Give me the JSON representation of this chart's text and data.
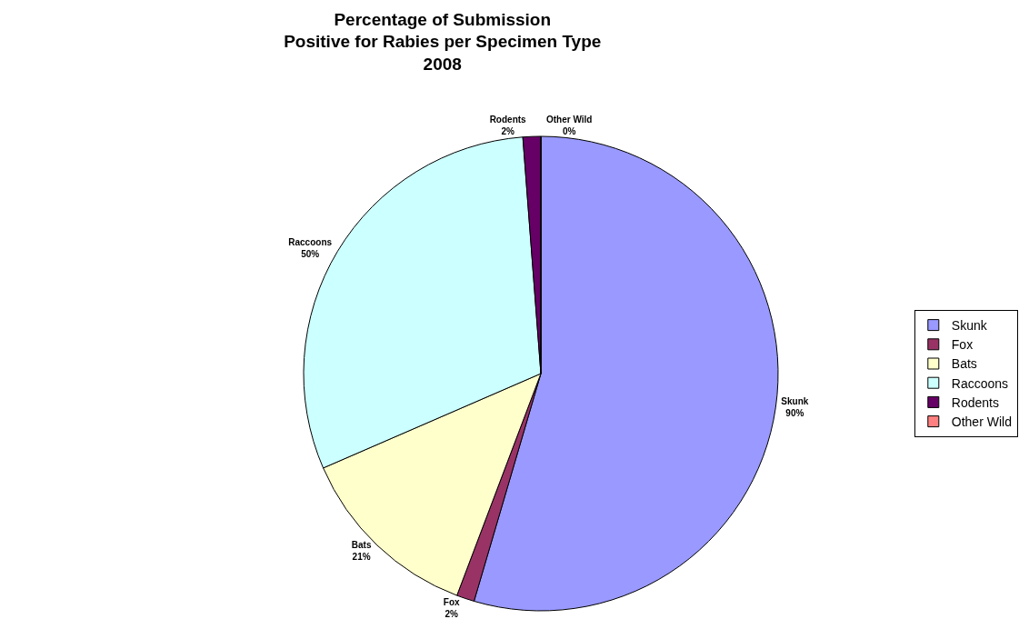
{
  "chart_data": {
    "type": "pie",
    "title": "Percentage of Submission\nPositive for Rabies per Specimen Type\n2008",
    "categories": [
      "Skunk",
      "Fox",
      "Bats",
      "Raccoons",
      "Rodents",
      "Other Wild"
    ],
    "values": [
      90,
      2,
      21,
      50,
      2,
      0
    ],
    "value_labels": [
      "90%",
      "2%",
      "21%",
      "50%",
      "2%",
      "0%"
    ],
    "colors": [
      "#9999ff",
      "#993366",
      "#ffffcc",
      "#ccffff",
      "#660066",
      "#ff8080"
    ],
    "legend": "right"
  }
}
